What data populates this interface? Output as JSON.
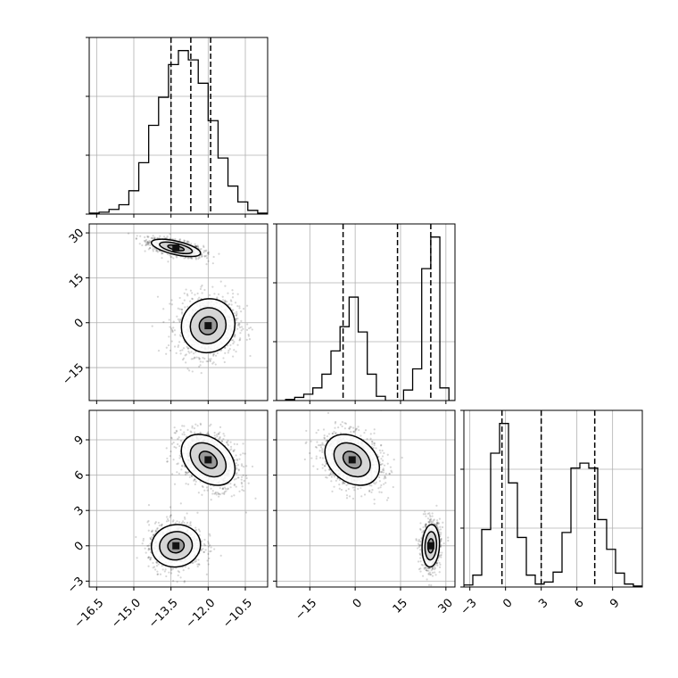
{
  "chart_data": {
    "type": "corner",
    "parameters": [
      {
        "index": 0,
        "label": "",
        "range": [
          -16.8,
          -9.6
        ],
        "ticks": [
          -16.5,
          -15.0,
          -13.5,
          -12.0,
          -10.5
        ],
        "tick_labels": [
          "−16.5",
          "−15.0",
          "−13.5",
          "−12.0",
          "−10.5"
        ],
        "quantiles": [
          -13.5,
          -12.7,
          -11.9
        ]
      },
      {
        "index": 1,
        "label": "",
        "range": [
          -26,
          33
        ],
        "ticks": [
          -15,
          0,
          15,
          30
        ],
        "tick_labels": [
          "−15",
          "0",
          "15",
          "30"
        ],
        "quantiles": [
          -4,
          14,
          25
        ]
      },
      {
        "index": 2,
        "label": "",
        "range": [
          -3.5,
          11.5
        ],
        "ticks": [
          -3,
          0,
          3,
          6,
          9
        ],
        "tick_labels": [
          "−3",
          "0",
          "3",
          "6",
          "9"
        ],
        "quantiles": [
          -0.3,
          3.0,
          7.5
        ]
      }
    ],
    "histograms": [
      {
        "param": 0,
        "bin_edges": [
          -16.8,
          -16.4,
          -16.0,
          -15.6,
          -15.2,
          -14.8,
          -14.4,
          -14.0,
          -13.6,
          -13.2,
          -12.8,
          -12.4,
          -12.0,
          -11.6,
          -11.2,
          -10.8,
          -10.4,
          -10.0,
          -9.6
        ],
        "counts": [
          1,
          2,
          5,
          10,
          25,
          55,
          95,
          125,
          160,
          175,
          165,
          140,
          100,
          60,
          30,
          13,
          4,
          1
        ]
      },
      {
        "param": 1,
        "bin_edges": [
          -26,
          -23,
          -20,
          -17,
          -14,
          -11,
          -8,
          -5,
          -2,
          1,
          4,
          7,
          10,
          13,
          16,
          19,
          22,
          25,
          28,
          31,
          34
        ],
        "counts": [
          0,
          1,
          3,
          6,
          12,
          25,
          47,
          70,
          98,
          65,
          25,
          4,
          0,
          0,
          10,
          30,
          125,
          155,
          12,
          0
        ]
      },
      {
        "param": 2,
        "bin_edges": [
          -3.5,
          -2.75,
          -2.0,
          -1.25,
          -0.5,
          0.25,
          1.0,
          1.75,
          2.5,
          3.25,
          4.0,
          4.75,
          5.5,
          6.25,
          7.0,
          7.75,
          8.5,
          9.25,
          10.0,
          10.75,
          11.5
        ],
        "counts": [
          2,
          12,
          58,
          135,
          165,
          105,
          50,
          12,
          3,
          5,
          15,
          55,
          120,
          125,
          120,
          68,
          38,
          14,
          3,
          1
        ]
      }
    ],
    "modes": [
      {
        "name": "",
        "mean": [
          -13.3,
          25.0,
          0.0
        ],
        "std": [
          0.55,
          1.6,
          1.0
        ],
        "rho": {
          "01": -0.6,
          "02": 0.05,
          "12": 0.1
        },
        "n": 900
      },
      {
        "name": "",
        "mean": [
          -12.0,
          -1.0,
          7.3
        ],
        "std": [
          0.6,
          5.0,
          1.2
        ],
        "rho": {
          "01": 0.05,
          "02": -0.35,
          "12": -0.3
        },
        "n": 1100
      }
    ],
    "grid": true,
    "quantile_line_style": "dashed",
    "contour_levels": [
      0.6,
      1.2,
      1.8
    ]
  }
}
